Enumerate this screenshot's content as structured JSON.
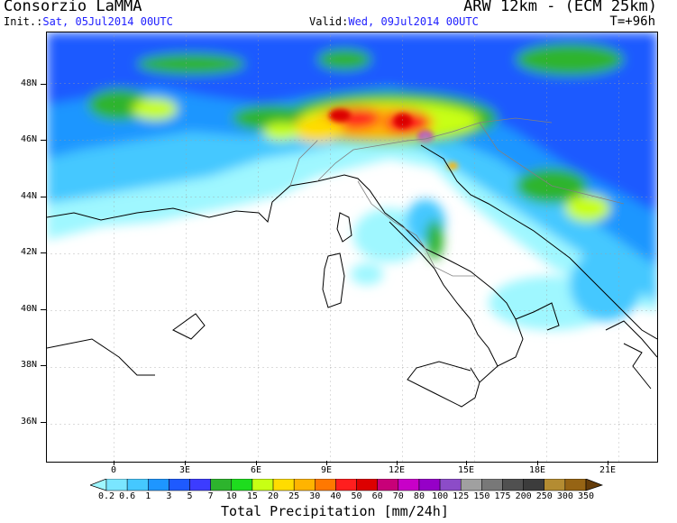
{
  "header": {
    "org": "Consorzio LaMMA",
    "model": "ARW 12km - (ECM 25km)",
    "init_label": "Init.:",
    "init_value": "Sat, 05Jul2014 00UTC",
    "valid_label": "Valid:",
    "valid_value": "Wed, 09Jul2014 00UTC",
    "lead_time": "T=+96h"
  },
  "axes": {
    "lat_labels": [
      "48N",
      "46N",
      "44N",
      "42N",
      "40N",
      "38N",
      "36N"
    ],
    "lon_labels": [
      "0",
      "3E",
      "6E",
      "9E",
      "12E",
      "15E",
      "18E",
      "21E"
    ]
  },
  "colorbar": {
    "title": "Total Precipitation [mm/24h]",
    "levels": [
      "0.2",
      "0.6",
      "1",
      "3",
      "5",
      "7",
      "10",
      "15",
      "20",
      "25",
      "30",
      "40",
      "50",
      "60",
      "70",
      "80",
      "100",
      "125",
      "150",
      "175",
      "200",
      "250",
      "300",
      "350"
    ],
    "colors": [
      "#9ff7ff",
      "#7ae6ff",
      "#45c8ff",
      "#1e96ff",
      "#1e5aff",
      "#3c3cff",
      "#2db42d",
      "#1edc1e",
      "#c8ff14",
      "#ffdc00",
      "#ffb400",
      "#ff7800",
      "#ff1e1e",
      "#dc0000",
      "#c80078",
      "#c800c8",
      "#9600c8",
      "#8c4cc8",
      "#a0a0a0",
      "#787878",
      "#505050",
      "#3c3c3c",
      "#b48c32",
      "#966414",
      "#643c0a"
    ]
  }
}
